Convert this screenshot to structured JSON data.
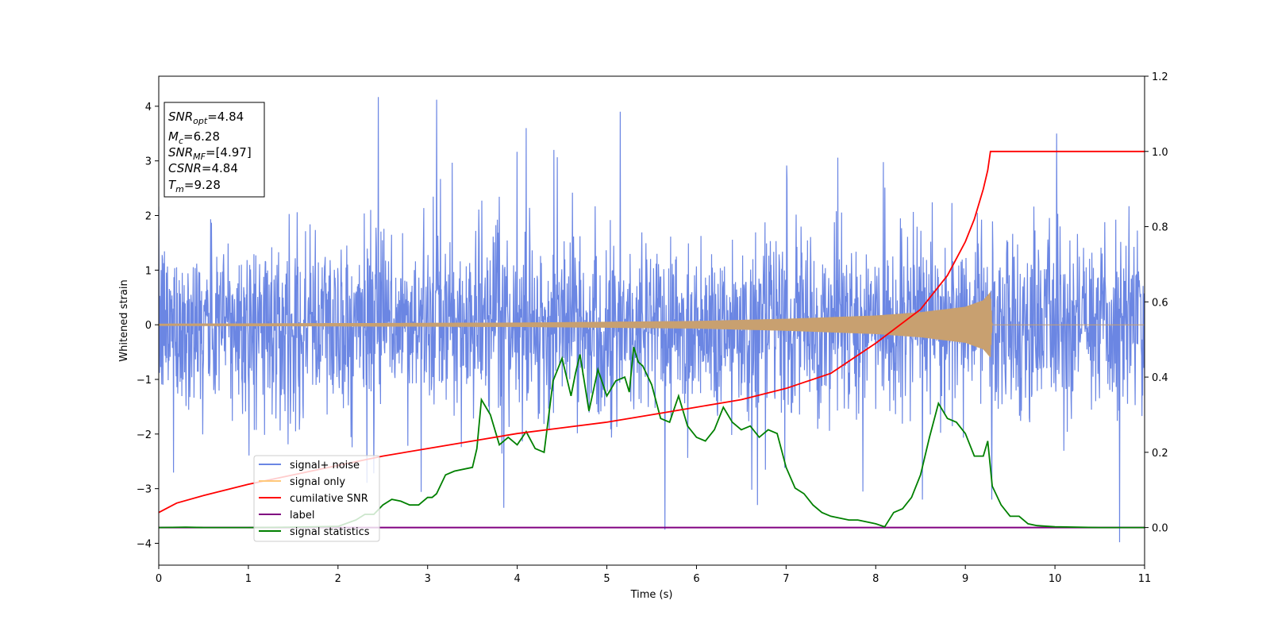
{
  "chart_data": {
    "type": "line",
    "xlabel": "Time (s)",
    "ylabel": "Whitened strain",
    "xlim": [
      0,
      11
    ],
    "ylim_left": [
      -4.4,
      4.55
    ],
    "ylim_right": [
      -0.1,
      1.2
    ],
    "x_ticks": [
      0,
      1,
      2,
      3,
      4,
      5,
      6,
      7,
      8,
      9,
      10,
      11
    ],
    "x_tick_labels": [
      "0",
      "1",
      "2",
      "3",
      "4",
      "5",
      "6",
      "7",
      "8",
      "9",
      "10",
      "11"
    ],
    "y_left_ticks": [
      4,
      3,
      2,
      1,
      0,
      -1,
      -2,
      -3,
      -4
    ],
    "y_left_tick_labels": [
      "4",
      "3",
      "2",
      "1",
      "0",
      "−1",
      "−2",
      "−3",
      "−4"
    ],
    "y_right_ticks": [
      1.2,
      1.0,
      0.8,
      0.6,
      0.4,
      0.2,
      0.0
    ],
    "y_right_tick_labels": [
      "1.2",
      "1.0",
      "0.8",
      "0.6",
      "0.4",
      "0.2",
      "0.0"
    ],
    "colors": {
      "signal_noise": "#6b86e3",
      "signal_only": "#c8a070",
      "signal_only_legend": "#ffc87a",
      "cumulative_snr": "#ff0000",
      "label": "#800080",
      "signal_statistics": "#008000"
    },
    "info_box": {
      "snr_opt_value": "4.84",
      "mc_value": "6.28",
      "snr_mf_value": "[4.97]",
      "csnr_value": "4.84",
      "tm_value": "9.28",
      "symbols": {
        "snr": "SNR",
        "opt": "opt",
        "m": "M",
        "c": "c",
        "mf": "MF",
        "csnr": "CSNR",
        "t": "T",
        "tm": "m",
        "eq": "="
      }
    },
    "legend": {
      "entries": [
        "signal+ noise",
        "signal only",
        "cumilative SNR",
        "label",
        "signal statistics"
      ]
    },
    "signal_noise": {
      "axis": "left",
      "x_range": [
        0,
        11
      ],
      "noise_amplitude_typical": 1.4,
      "peaks": [
        [
          2.45,
          4.17
        ],
        [
          3.1,
          4.12
        ],
        [
          5.15,
          3.9
        ],
        [
          4.1,
          3.6
        ],
        [
          10.02,
          3.5
        ],
        [
          5.65,
          -3.75
        ],
        [
          10.72,
          -3.98
        ],
        [
          3.85,
          -3.35
        ],
        [
          6.68,
          -3.3
        ]
      ]
    },
    "signal_only": {
      "axis": "left",
      "merger_time": 9.28,
      "peak_amplitude": 0.6,
      "envelope": [
        [
          0,
          0.02
        ],
        [
          4,
          0.04
        ],
        [
          6,
          0.07
        ],
        [
          7,
          0.11
        ],
        [
          8,
          0.17
        ],
        [
          8.5,
          0.23
        ],
        [
          9,
          0.33
        ],
        [
          9.2,
          0.45
        ],
        [
          9.28,
          0.6
        ],
        [
          9.3,
          0.0
        ],
        [
          11,
          0.0
        ]
      ]
    },
    "cumulative_snr": {
      "axis": "right",
      "x": [
        0,
        0.2,
        0.5,
        1,
        1.5,
        2,
        2.5,
        3,
        3.5,
        4,
        4.5,
        5,
        5.5,
        6,
        6.5,
        7,
        7.5,
        8,
        8.5,
        8.8,
        9.0,
        9.1,
        9.2,
        9.25,
        9.28,
        11
      ],
      "y": [
        0.04,
        0.065,
        0.085,
        0.115,
        0.14,
        0.165,
        0.19,
        0.21,
        0.23,
        0.25,
        0.265,
        0.28,
        0.3,
        0.32,
        0.34,
        0.37,
        0.41,
        0.49,
        0.58,
        0.67,
        0.76,
        0.82,
        0.9,
        0.95,
        1.0,
        1.0
      ]
    },
    "label": {
      "axis": "right",
      "x": [
        0,
        11
      ],
      "y": [
        0.0,
        0.0
      ]
    },
    "signal_statistics": {
      "axis": "right",
      "x": [
        0,
        0.3,
        0.5,
        1.0,
        1.5,
        2.0,
        2.2,
        2.3,
        2.4,
        2.5,
        2.6,
        2.7,
        2.8,
        2.9,
        3.0,
        3.05,
        3.1,
        3.2,
        3.3,
        3.5,
        3.55,
        3.6,
        3.7,
        3.8,
        3.9,
        4.0,
        4.1,
        4.2,
        4.3,
        4.4,
        4.5,
        4.6,
        4.65,
        4.7,
        4.8,
        4.9,
        5.0,
        5.1,
        5.2,
        5.25,
        5.3,
        5.35,
        5.4,
        5.5,
        5.6,
        5.7,
        5.8,
        5.9,
        6.0,
        6.1,
        6.2,
        6.3,
        6.4,
        6.5,
        6.6,
        6.7,
        6.8,
        6.9,
        7.0,
        7.1,
        7.2,
        7.3,
        7.4,
        7.5,
        7.6,
        7.7,
        7.8,
        7.9,
        8.0,
        8.1,
        8.2,
        8.3,
        8.4,
        8.5,
        8.6,
        8.7,
        8.8,
        8.9,
        9.0,
        9.1,
        9.2,
        9.25,
        9.3,
        9.4,
        9.5,
        9.6,
        9.7,
        9.8,
        10.0,
        10.5,
        11
      ],
      "y": [
        0.0,
        0.001,
        0.0,
        0.0,
        0.001,
        0.003,
        0.02,
        0.035,
        0.035,
        0.06,
        0.075,
        0.07,
        0.06,
        0.06,
        0.08,
        0.08,
        0.09,
        0.14,
        0.15,
        0.16,
        0.21,
        0.34,
        0.3,
        0.22,
        0.24,
        0.22,
        0.255,
        0.21,
        0.2,
        0.39,
        0.45,
        0.35,
        0.41,
        0.46,
        0.31,
        0.42,
        0.35,
        0.39,
        0.4,
        0.36,
        0.48,
        0.44,
        0.43,
        0.38,
        0.29,
        0.28,
        0.35,
        0.27,
        0.24,
        0.23,
        0.26,
        0.32,
        0.28,
        0.26,
        0.27,
        0.24,
        0.26,
        0.25,
        0.16,
        0.105,
        0.09,
        0.06,
        0.04,
        0.03,
        0.025,
        0.02,
        0.02,
        0.015,
        0.01,
        0.002,
        0.04,
        0.05,
        0.08,
        0.14,
        0.24,
        0.33,
        0.29,
        0.28,
        0.25,
        0.19,
        0.19,
        0.23,
        0.11,
        0.06,
        0.03,
        0.03,
        0.01,
        0.005,
        0.002,
        0.0,
        0.0
      ]
    }
  }
}
